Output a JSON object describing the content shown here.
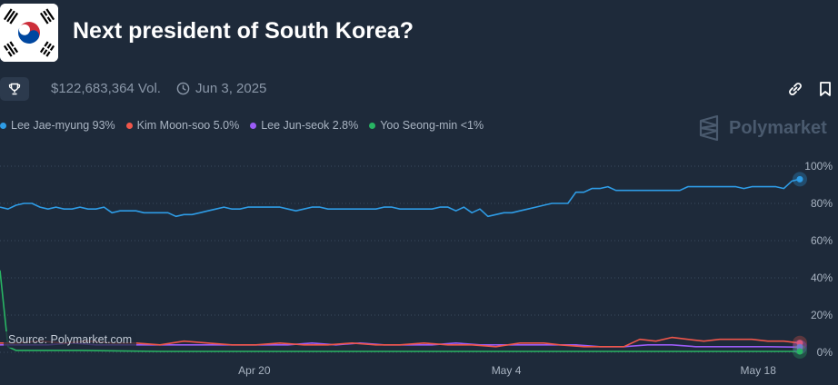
{
  "header": {
    "title": "Next president of South Korea?",
    "volume": "$122,683,364 Vol.",
    "date": "Jun 3, 2025"
  },
  "icons": {
    "flag": "south-korea-flag-icon",
    "trophy": "trophy-icon",
    "clock": "clock-icon",
    "link": "link-icon",
    "bookmark": "bookmark-icon",
    "brand": "polymarket-logo-icon"
  },
  "brand": {
    "name": "Polymarket"
  },
  "source": "Source: Polymarket.com",
  "legend": [
    {
      "label": "Lee Jae-myung 93%",
      "color": "#2e9ce6"
    },
    {
      "label": "Kim Moon-soo 5.0%",
      "color": "#f0564a"
    },
    {
      "label": "Lee Jun-seok 2.8%",
      "color": "#9b5cf6"
    },
    {
      "label": "Yoo Seong-min <1%",
      "color": "#28b463"
    }
  ],
  "chart_data": {
    "type": "line",
    "y_ticks": [
      "100%",
      "80%",
      "60%",
      "40%",
      "20%",
      "0%"
    ],
    "ylim": [
      0,
      100
    ],
    "x_ticks": [
      {
        "label": "Apr 20",
        "x": 0.318
      },
      {
        "label": "May 4",
        "x": 0.633
      },
      {
        "label": "May 18",
        "x": 0.948
      }
    ],
    "xlim": [
      0,
      1
    ],
    "grid": true,
    "series": [
      {
        "name": "Lee Jae-myung",
        "color": "#2e9ce6",
        "values": [
          [
            0.0,
            78
          ],
          [
            0.01,
            77
          ],
          [
            0.02,
            79
          ],
          [
            0.03,
            80
          ],
          [
            0.04,
            80
          ],
          [
            0.05,
            78
          ],
          [
            0.06,
            77
          ],
          [
            0.07,
            78
          ],
          [
            0.08,
            77
          ],
          [
            0.09,
            77
          ],
          [
            0.1,
            78
          ],
          [
            0.11,
            77
          ],
          [
            0.12,
            77
          ],
          [
            0.13,
            78
          ],
          [
            0.14,
            75
          ],
          [
            0.15,
            76
          ],
          [
            0.16,
            76
          ],
          [
            0.17,
            76
          ],
          [
            0.18,
            75
          ],
          [
            0.19,
            75
          ],
          [
            0.2,
            75
          ],
          [
            0.21,
            75
          ],
          [
            0.22,
            73
          ],
          [
            0.23,
            74
          ],
          [
            0.24,
            74
          ],
          [
            0.25,
            75
          ],
          [
            0.26,
            76
          ],
          [
            0.27,
            77
          ],
          [
            0.28,
            78
          ],
          [
            0.29,
            77
          ],
          [
            0.3,
            77
          ],
          [
            0.31,
            78
          ],
          [
            0.32,
            78
          ],
          [
            0.33,
            78
          ],
          [
            0.34,
            78
          ],
          [
            0.35,
            78
          ],
          [
            0.36,
            77
          ],
          [
            0.37,
            76
          ],
          [
            0.38,
            77
          ],
          [
            0.39,
            78
          ],
          [
            0.4,
            78
          ],
          [
            0.41,
            77
          ],
          [
            0.42,
            77
          ],
          [
            0.43,
            77
          ],
          [
            0.44,
            77
          ],
          [
            0.45,
            77
          ],
          [
            0.46,
            77
          ],
          [
            0.47,
            77
          ],
          [
            0.48,
            78
          ],
          [
            0.49,
            78
          ],
          [
            0.5,
            77
          ],
          [
            0.51,
            77
          ],
          [
            0.52,
            77
          ],
          [
            0.53,
            77
          ],
          [
            0.54,
            77
          ],
          [
            0.55,
            78
          ],
          [
            0.56,
            78
          ],
          [
            0.57,
            76
          ],
          [
            0.58,
            78
          ],
          [
            0.59,
            75
          ],
          [
            0.6,
            77
          ],
          [
            0.61,
            73
          ],
          [
            0.62,
            74
          ],
          [
            0.63,
            75
          ],
          [
            0.64,
            75
          ],
          [
            0.65,
            76
          ],
          [
            0.66,
            77
          ],
          [
            0.67,
            78
          ],
          [
            0.68,
            79
          ],
          [
            0.69,
            80
          ],
          [
            0.7,
            80
          ],
          [
            0.71,
            80
          ],
          [
            0.72,
            86
          ],
          [
            0.73,
            86
          ],
          [
            0.74,
            88
          ],
          [
            0.75,
            88
          ],
          [
            0.76,
            89
          ],
          [
            0.77,
            87
          ],
          [
            0.78,
            87
          ],
          [
            0.79,
            87
          ],
          [
            0.8,
            87
          ],
          [
            0.81,
            87
          ],
          [
            0.82,
            87
          ],
          [
            0.83,
            87
          ],
          [
            0.84,
            87
          ],
          [
            0.85,
            87
          ],
          [
            0.86,
            89
          ],
          [
            0.87,
            89
          ],
          [
            0.88,
            89
          ],
          [
            0.89,
            89
          ],
          [
            0.9,
            89
          ],
          [
            0.91,
            89
          ],
          [
            0.92,
            89
          ],
          [
            0.93,
            88
          ],
          [
            0.94,
            89
          ],
          [
            0.95,
            89
          ],
          [
            0.96,
            89
          ],
          [
            0.97,
            89
          ],
          [
            0.98,
            88
          ],
          [
            0.99,
            92
          ],
          [
            1.0,
            93
          ]
        ]
      },
      {
        "name": "Kim Moon-soo",
        "color": "#f0564a",
        "values": [
          [
            0.0,
            5
          ],
          [
            0.02,
            5
          ],
          [
            0.05,
            6
          ],
          [
            0.08,
            5
          ],
          [
            0.11,
            6
          ],
          [
            0.14,
            5
          ],
          [
            0.17,
            5
          ],
          [
            0.2,
            4
          ],
          [
            0.23,
            6
          ],
          [
            0.26,
            5
          ],
          [
            0.29,
            4
          ],
          [
            0.32,
            4
          ],
          [
            0.35,
            5
          ],
          [
            0.38,
            4
          ],
          [
            0.41,
            4
          ],
          [
            0.44,
            5
          ],
          [
            0.47,
            4
          ],
          [
            0.5,
            4
          ],
          [
            0.53,
            5
          ],
          [
            0.56,
            4
          ],
          [
            0.59,
            4
          ],
          [
            0.62,
            3
          ],
          [
            0.65,
            5
          ],
          [
            0.68,
            5
          ],
          [
            0.7,
            4
          ],
          [
            0.73,
            3
          ],
          [
            0.76,
            3
          ],
          [
            0.78,
            3
          ],
          [
            0.8,
            7
          ],
          [
            0.82,
            6
          ],
          [
            0.84,
            8
          ],
          [
            0.86,
            7
          ],
          [
            0.88,
            6
          ],
          [
            0.9,
            7
          ],
          [
            0.92,
            7
          ],
          [
            0.94,
            7
          ],
          [
            0.96,
            6
          ],
          [
            0.98,
            6
          ],
          [
            1.0,
            5
          ]
        ]
      },
      {
        "name": "Lee Jun-seok",
        "color": "#9b5cf6",
        "values": [
          [
            0.0,
            4
          ],
          [
            0.03,
            4
          ],
          [
            0.06,
            4
          ],
          [
            0.09,
            5
          ],
          [
            0.12,
            4
          ],
          [
            0.15,
            4
          ],
          [
            0.18,
            4
          ],
          [
            0.21,
            4
          ],
          [
            0.24,
            4
          ],
          [
            0.27,
            4
          ],
          [
            0.3,
            4
          ],
          [
            0.33,
            4
          ],
          [
            0.36,
            4
          ],
          [
            0.39,
            5
          ],
          [
            0.42,
            4
          ],
          [
            0.45,
            5
          ],
          [
            0.48,
            4
          ],
          [
            0.51,
            4
          ],
          [
            0.54,
            4
          ],
          [
            0.57,
            5
          ],
          [
            0.6,
            4
          ],
          [
            0.63,
            4
          ],
          [
            0.66,
            4
          ],
          [
            0.69,
            4
          ],
          [
            0.72,
            4
          ],
          [
            0.75,
            3
          ],
          [
            0.78,
            3
          ],
          [
            0.81,
            4
          ],
          [
            0.84,
            4
          ],
          [
            0.87,
            3
          ],
          [
            0.9,
            3
          ],
          [
            0.93,
            3
          ],
          [
            0.96,
            3
          ],
          [
            1.0,
            2.8
          ]
        ]
      },
      {
        "name": "Yoo Seong-min",
        "color": "#28b463",
        "values": [
          [
            0.0,
            44
          ],
          [
            0.01,
            3
          ],
          [
            0.02,
            1
          ],
          [
            0.04,
            1
          ],
          [
            0.1,
            1
          ],
          [
            0.2,
            0.5
          ],
          [
            0.3,
            0.5
          ],
          [
            0.4,
            0.5
          ],
          [
            0.5,
            0.5
          ],
          [
            0.6,
            0.5
          ],
          [
            0.7,
            0.5
          ],
          [
            0.8,
            0.5
          ],
          [
            0.9,
            0.5
          ],
          [
            1.0,
            0.5
          ]
        ]
      }
    ]
  }
}
